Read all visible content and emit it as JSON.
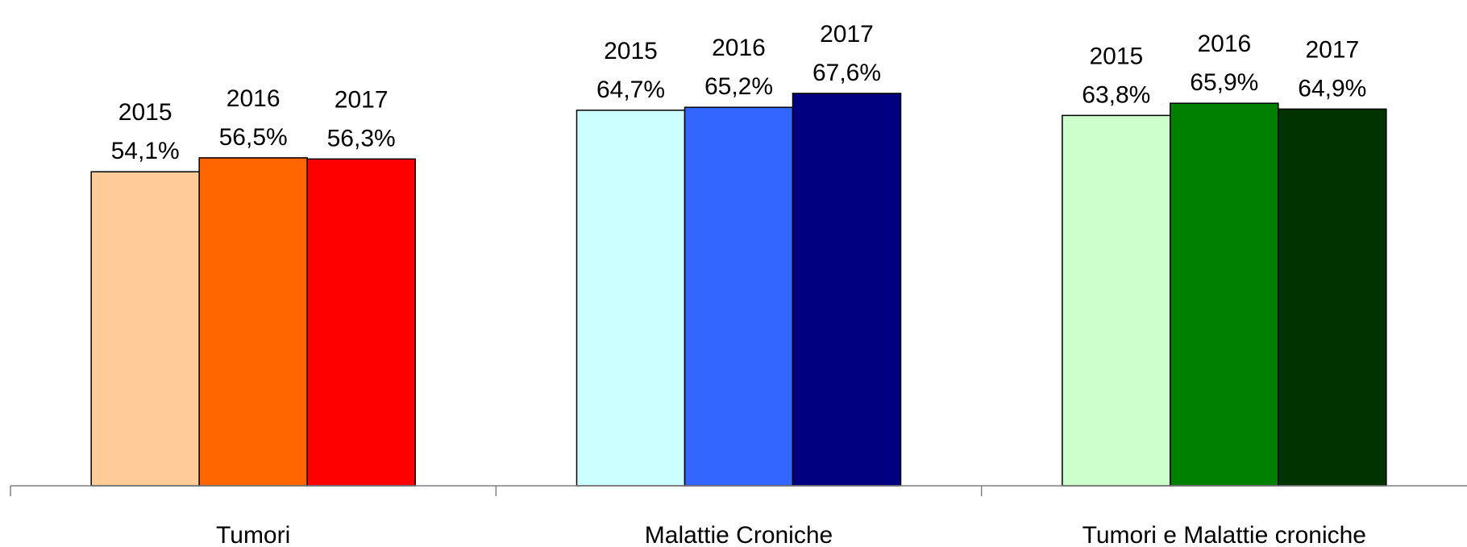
{
  "chart_data": {
    "type": "bar",
    "categories": [
      "Tumori",
      "Malattie Croniche",
      "Tumori e Malattie croniche"
    ],
    "groups": [
      {
        "category": "Tumori",
        "bars": [
          {
            "label": "2015",
            "value": 54.1,
            "value_label": "54,1%",
            "color": "#FFCC99"
          },
          {
            "label": "2016",
            "value": 56.5,
            "value_label": "56,5%",
            "color": "#FF6600"
          },
          {
            "label": "2017",
            "value": 56.3,
            "value_label": "56,3%",
            "color": "#FF0000"
          }
        ]
      },
      {
        "category": "Malattie Croniche",
        "bars": [
          {
            "label": "2015",
            "value": 64.7,
            "value_label": "64,7%",
            "color": "#CCFFFF"
          },
          {
            "label": "2016",
            "value": 65.2,
            "value_label": "65,2%",
            "color": "#3366FF"
          },
          {
            "label": "2017",
            "value": 67.6,
            "value_label": "67,6%",
            "color": "#000080"
          }
        ]
      },
      {
        "category": "Tumori e Malattie croniche",
        "bars": [
          {
            "label": "2015",
            "value": 63.8,
            "value_label": "63,8%",
            "color": "#CCFFCC"
          },
          {
            "label": "2016",
            "value": 65.9,
            "value_label": "65,9%",
            "color": "#008000"
          },
          {
            "label": "2017",
            "value": 64.9,
            "value_label": "64,9%",
            "color": "#003300"
          }
        ]
      }
    ],
    "ylim": [
      0,
      100
    ],
    "grid": false,
    "legend": "none",
    "title": "",
    "xlabel": "",
    "ylabel": ""
  }
}
